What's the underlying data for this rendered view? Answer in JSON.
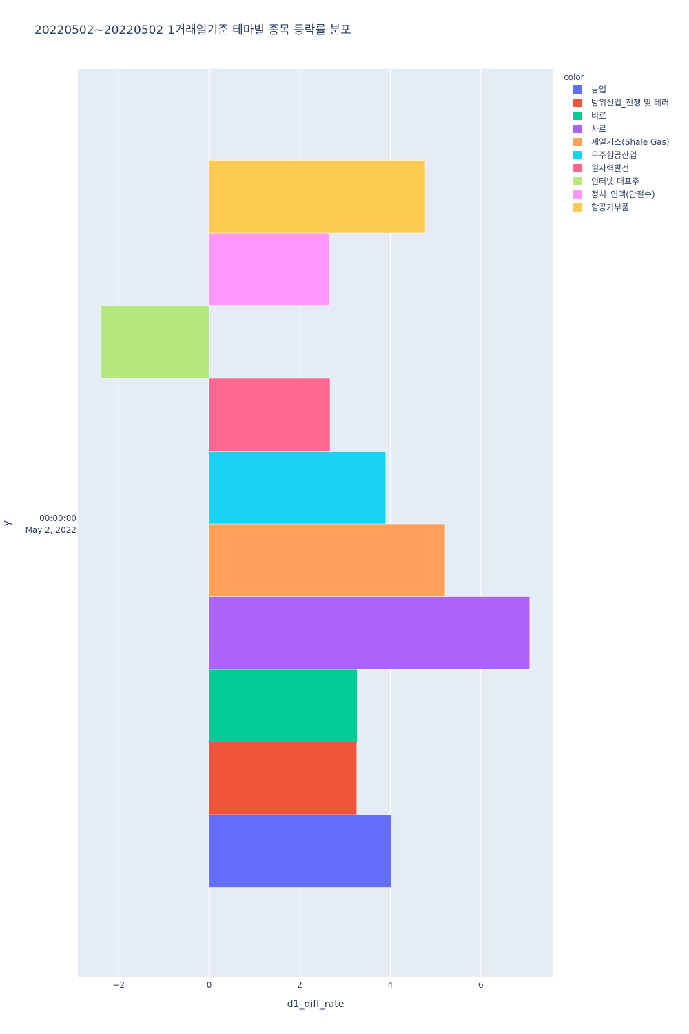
{
  "chart_data": {
    "type": "bar",
    "orientation": "horizontal",
    "barmode": "group",
    "title": "20220502~20220502 1거래일기준 테마별 종목 등락률 분포",
    "xlabel": "d1_diff_rate",
    "ylabel": "y",
    "xlim": [
      -2.9,
      7.6
    ],
    "xticks": [
      -2,
      0,
      2,
      4,
      6
    ],
    "xtick_labels": [
      "−2",
      "0",
      "2",
      "4",
      "6"
    ],
    "y_category_label_lines": [
      "00:00:00",
      "May 2, 2022"
    ],
    "grid": true,
    "legend": {
      "title": "color",
      "placement": "top-right"
    },
    "series": [
      {
        "name": "농업",
        "value": 4.02,
        "color": "#636efa"
      },
      {
        "name": "방위산업_전쟁 및 테러",
        "value": 3.26,
        "color": "#EF553B"
      },
      {
        "name": "비료",
        "value": 3.27,
        "color": "#00cc96"
      },
      {
        "name": "사료",
        "value": 7.08,
        "color": "#ab63fa"
      },
      {
        "name": "셰일가스(Shale Gas)",
        "value": 5.21,
        "color": "#FFA15A"
      },
      {
        "name": "우주항공산업",
        "value": 3.9,
        "color": "#19d3f3"
      },
      {
        "name": "원자력발전",
        "value": 2.67,
        "color": "#FF6692"
      },
      {
        "name": "인터넷 대표주",
        "value": 2.4,
        "sign": -1,
        "color": "#B6E880"
      },
      {
        "name": "정치_인맥(안철수)",
        "value": 2.66,
        "color": "#FF97FF"
      },
      {
        "name": "항공기부품",
        "value": 4.77,
        "color": "#FECB52"
      }
    ]
  }
}
